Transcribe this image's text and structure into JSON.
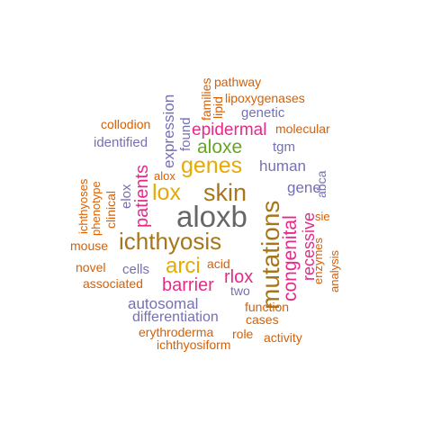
{
  "colors": {
    "orange": "#d95f02",
    "purple": "#7570b3",
    "magenta": "#e7298a",
    "green": "#66a61e",
    "gold": "#e6ab02",
    "brown": "#a6761d",
    "gray": "#666666"
  },
  "words": [
    {
      "text": "aloxb",
      "color": "gray"
    },
    {
      "text": "mutations",
      "color": "brown"
    },
    {
      "text": "ichthyosis",
      "color": "brown"
    },
    {
      "text": "skin",
      "color": "brown"
    },
    {
      "text": "genes",
      "color": "gold"
    },
    {
      "text": "lox",
      "color": "gold"
    },
    {
      "text": "arci",
      "color": "gold"
    },
    {
      "text": "congenital",
      "color": "magenta"
    },
    {
      "text": "aloxe",
      "color": "green"
    },
    {
      "text": "patients",
      "color": "magenta"
    },
    {
      "text": "epidermal",
      "color": "magenta"
    },
    {
      "text": "barrier",
      "color": "magenta"
    },
    {
      "text": "rlox",
      "color": "magenta"
    },
    {
      "text": "recessive",
      "color": "magenta"
    },
    {
      "text": "human",
      "color": "purple"
    },
    {
      "text": "expression",
      "color": "purple"
    },
    {
      "text": "gene",
      "color": "purple"
    },
    {
      "text": "autosomal",
      "color": "purple"
    },
    {
      "text": "differentiation",
      "color": "purple"
    },
    {
      "text": "elox",
      "color": "purple"
    },
    {
      "text": "cells",
      "color": "purple"
    },
    {
      "text": "tgm",
      "color": "purple"
    },
    {
      "text": "found",
      "color": "purple"
    },
    {
      "text": "genetic",
      "color": "purple"
    },
    {
      "text": "identified",
      "color": "purple"
    },
    {
      "text": "abca",
      "color": "purple"
    },
    {
      "text": "two",
      "color": "purple"
    },
    {
      "text": "pathway",
      "color": "orange"
    },
    {
      "text": "lipoxygenases",
      "color": "orange"
    },
    {
      "text": "families",
      "color": "orange"
    },
    {
      "text": "lipid",
      "color": "orange"
    },
    {
      "text": "collodion",
      "color": "orange"
    },
    {
      "text": "molecular",
      "color": "orange"
    },
    {
      "text": "alox",
      "color": "orange"
    },
    {
      "text": "sie",
      "color": "orange"
    },
    {
      "text": "enzymes",
      "color": "orange"
    },
    {
      "text": "analysis",
      "color": "orange"
    },
    {
      "text": "acid",
      "color": "orange"
    },
    {
      "text": "function",
      "color": "orange"
    },
    {
      "text": "cases",
      "color": "orange"
    },
    {
      "text": "role",
      "color": "orange"
    },
    {
      "text": "activity",
      "color": "orange"
    },
    {
      "text": "erythroderma",
      "color": "orange"
    },
    {
      "text": "ichthyosiform",
      "color": "orange"
    },
    {
      "text": "novel",
      "color": "orange"
    },
    {
      "text": "associated",
      "color": "orange"
    },
    {
      "text": "mouse",
      "color": "orange"
    },
    {
      "text": "ichthyoses",
      "color": "orange"
    },
    {
      "text": "phenotype",
      "color": "orange"
    },
    {
      "text": "clinical",
      "color": "orange"
    }
  ]
}
